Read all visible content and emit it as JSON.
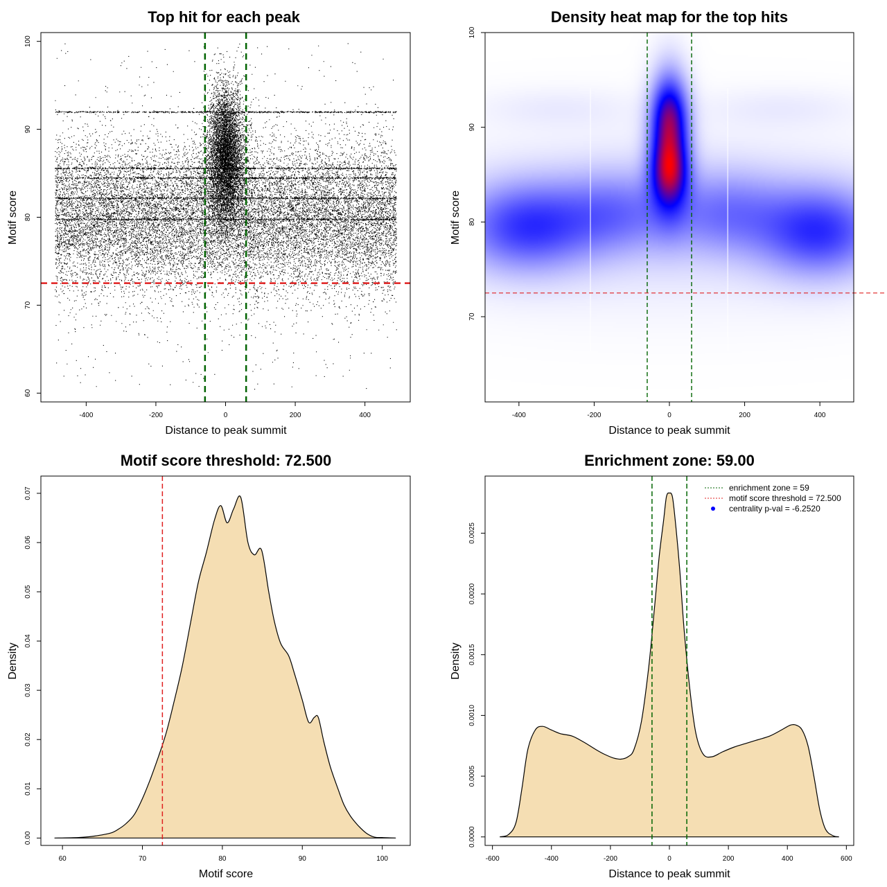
{
  "colors": {
    "points": "#000000",
    "enrichment": "#006400",
    "threshold": "#e02020",
    "density_fill": "#f5deb3",
    "heat_low": "#0000ff",
    "heat_high": "#ff0000"
  },
  "chart_data": [
    {
      "id": "scatter",
      "type": "scatter",
      "title": "Top hit for each peak",
      "xlabel": "Distance to peak summit",
      "ylabel": "Motif score",
      "xlim": [
        -530,
        530
      ],
      "ylim": [
        59,
        101
      ],
      "x_ticks": [
        -400,
        -200,
        0,
        200,
        400
      ],
      "y_ticks": [
        60,
        70,
        80,
        90,
        100
      ],
      "x_tick_labels": [
        "-400",
        "-200",
        "0",
        "200",
        "400"
      ],
      "y_tick_labels": [
        "60",
        "70",
        "80",
        "90",
        "100"
      ],
      "vlines": [
        -59,
        59
      ],
      "hline": 72.5,
      "x_range": [
        -490,
        490
      ],
      "background_mode_score": 80,
      "central_mode_score": 87
    },
    {
      "id": "heatmap",
      "type": "heatmap",
      "title": "Density heat map for the top hits",
      "xlabel": "Distance to peak summit",
      "ylabel": "Motif score",
      "xlim": [
        -490,
        490
      ],
      "ylim": [
        61,
        100
      ],
      "x_ticks": [
        -400,
        -200,
        0,
        200,
        400
      ],
      "y_ticks": [
        70,
        80,
        90,
        100
      ],
      "x_tick_labels": [
        "-400",
        "-200",
        "0",
        "200",
        "400"
      ],
      "y_tick_labels": [
        "70",
        "80",
        "90",
        "100"
      ],
      "vlines": [
        -59,
        59
      ],
      "hline": 72.5,
      "white_lines": [
        -210,
        155
      ],
      "blobs": [
        {
          "x": 0,
          "y": 88.5,
          "sx": 35,
          "sy": 4.5,
          "w": 1.0
        },
        {
          "x": 0,
          "y": 85.3,
          "sx": 33,
          "sy": 2.2,
          "w": 0.55
        },
        {
          "x": 0,
          "y": 91.5,
          "sx": 30,
          "sy": 2.5,
          "w": 0.35
        },
        {
          "x": -380,
          "y": 79.5,
          "sx": 120,
          "sy": 3.2,
          "w": 0.6
        },
        {
          "x": 400,
          "y": 79.0,
          "sx": 110,
          "sy": 3.2,
          "w": 0.62
        },
        {
          "x": -140,
          "y": 81.0,
          "sx": 110,
          "sy": 3.0,
          "w": 0.35
        },
        {
          "x": 150,
          "y": 81.0,
          "sx": 110,
          "sy": 3.0,
          "w": 0.35
        },
        {
          "x": -300,
          "y": 92,
          "sx": 150,
          "sy": 1.5,
          "w": 0.06
        },
        {
          "x": 300,
          "y": 92,
          "sx": 150,
          "sy": 1.5,
          "w": 0.06
        },
        {
          "x": 0,
          "y": 80,
          "sx": 480,
          "sy": 6,
          "w": 0.12
        }
      ]
    },
    {
      "id": "score_density",
      "type": "area",
      "title": "Motif score threshold: 72.500",
      "xlabel": "Motif score",
      "ylabel": "Density",
      "xlim": [
        57.3,
        103.5
      ],
      "ylim": [
        -0.0015,
        0.0735
      ],
      "x_ticks": [
        60,
        70,
        80,
        90,
        100
      ],
      "y_ticks": [
        0.0,
        0.01,
        0.02,
        0.03,
        0.04,
        0.05,
        0.06,
        0.07
      ],
      "x_tick_labels": [
        "60",
        "70",
        "80",
        "90",
        "100"
      ],
      "y_tick_labels": [
        "0.00",
        "0.01",
        "0.02",
        "0.03",
        "0.04",
        "0.05",
        "0.06",
        "0.07"
      ],
      "threshold": 72.5,
      "x": [
        59,
        62,
        64,
        66,
        67,
        68,
        69,
        70,
        71,
        72,
        73,
        74,
        75,
        76,
        77,
        78,
        79,
        79.8,
        80.6,
        81.4,
        82.3,
        83.2,
        84.0,
        84.9,
        85.8,
        86.5,
        87.3,
        88.3,
        89.0,
        90.0,
        90.8,
        91.5,
        92.0,
        92.7,
        93.5,
        94.5,
        95.2,
        96.0,
        97.0,
        98.0,
        99.0,
        100.0,
        101.7
      ],
      "y": [
        0.0,
        0.0001,
        0.0004,
        0.001,
        0.0018,
        0.003,
        0.0048,
        0.008,
        0.012,
        0.0165,
        0.0215,
        0.028,
        0.035,
        0.0435,
        0.052,
        0.058,
        0.0645,
        0.0675,
        0.064,
        0.0668,
        0.0692,
        0.06,
        0.0575,
        0.0585,
        0.05,
        0.044,
        0.0395,
        0.037,
        0.0335,
        0.028,
        0.0235,
        0.0245,
        0.0245,
        0.0195,
        0.0145,
        0.0098,
        0.0068,
        0.0045,
        0.0025,
        0.001,
        0.0002,
        0.0001,
        0.0
      ]
    },
    {
      "id": "distance_density",
      "type": "area",
      "title": "Enrichment zone: 59.00",
      "xlabel": "Distance to peak summit",
      "ylabel": "Density",
      "xlim": [
        -625,
        625
      ],
      "ylim": [
        -7e-05,
        0.00297
      ],
      "x_ticks": [
        -600,
        -400,
        -200,
        0,
        200,
        400,
        600
      ],
      "y_ticks": [
        0.0,
        0.0005,
        0.001,
        0.0015,
        0.002,
        0.0025
      ],
      "x_tick_labels": [
        "-600",
        "-400",
        "-200",
        "0",
        "200",
        "400",
        "600"
      ],
      "y_tick_labels": [
        "0.0000",
        "0.0005",
        "0.0010",
        "0.0015",
        "0.0020",
        "0.0025"
      ],
      "vlines": [
        -59,
        59
      ],
      "x": [
        -575,
        -545,
        -520,
        -500,
        -480,
        -455,
        -430,
        -400,
        -370,
        -330,
        -290,
        -250,
        -220,
        -190,
        -165,
        -140,
        -120,
        -95,
        -70,
        -50,
        -35,
        -20,
        -10,
        0,
        10,
        20,
        35,
        50,
        70,
        90,
        115,
        145,
        180,
        220,
        260,
        300,
        340,
        380,
        410,
        430,
        450,
        470,
        490,
        510,
        530,
        555,
        575
      ],
      "y": [
        0.0,
        2e-05,
        0.00012,
        0.0004,
        0.00072,
        0.00088,
        0.00091,
        0.00088,
        0.00085,
        0.00083,
        0.00078,
        0.00072,
        0.00068,
        0.00065,
        0.00064,
        0.00066,
        0.00072,
        0.00095,
        0.0014,
        0.0019,
        0.0023,
        0.0026,
        0.0028,
        0.00283,
        0.0028,
        0.0026,
        0.0022,
        0.0017,
        0.0012,
        0.00085,
        0.00068,
        0.00066,
        0.0007,
        0.00074,
        0.00077,
        0.0008,
        0.00083,
        0.00088,
        0.00092,
        0.00092,
        0.00088,
        0.00075,
        0.0005,
        0.00022,
        6e-05,
        1e-05,
        0.0
      ]
    }
  ],
  "legend": {
    "items": [
      {
        "label": "enrichment zone = 59",
        "color": "#006400",
        "style": "dotted"
      },
      {
        "label": "motif score threshold = 72.500",
        "color": "#e02020",
        "style": "dotted"
      },
      {
        "label": "centrality p-val = -6.2520",
        "color": "#0000ff",
        "style": "point"
      }
    ]
  }
}
